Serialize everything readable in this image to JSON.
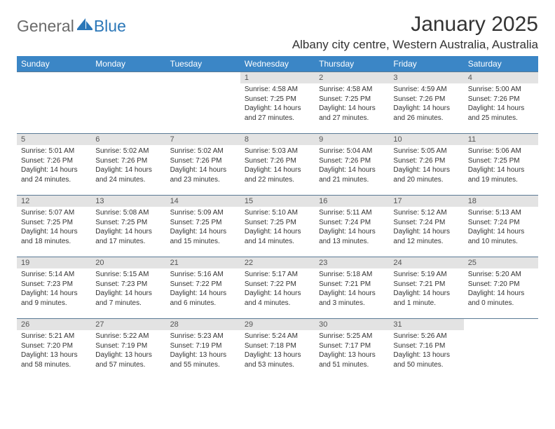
{
  "logo": {
    "text1": "General",
    "text2": "Blue"
  },
  "title": "January 2025",
  "location": "Albany city centre, Western Australia, Australia",
  "colors": {
    "header_bg": "#3b86c6",
    "header_text": "#ffffff",
    "daynum_bg": "#e3e3e3",
    "daynum_text": "#555555",
    "body_text": "#333333",
    "border": "#5a7a95",
    "logo_gray": "#6a6a6a",
    "logo_blue": "#2b77b8"
  },
  "weekdays": [
    "Sunday",
    "Monday",
    "Tuesday",
    "Wednesday",
    "Thursday",
    "Friday",
    "Saturday"
  ],
  "weeks": [
    [
      {
        "day": "",
        "lines": [
          "",
          "",
          "",
          ""
        ]
      },
      {
        "day": "",
        "lines": [
          "",
          "",
          "",
          ""
        ]
      },
      {
        "day": "",
        "lines": [
          "",
          "",
          "",
          ""
        ]
      },
      {
        "day": "1",
        "lines": [
          "Sunrise: 4:58 AM",
          "Sunset: 7:25 PM",
          "Daylight: 14 hours",
          "and 27 minutes."
        ]
      },
      {
        "day": "2",
        "lines": [
          "Sunrise: 4:58 AM",
          "Sunset: 7:25 PM",
          "Daylight: 14 hours",
          "and 27 minutes."
        ]
      },
      {
        "day": "3",
        "lines": [
          "Sunrise: 4:59 AM",
          "Sunset: 7:26 PM",
          "Daylight: 14 hours",
          "and 26 minutes."
        ]
      },
      {
        "day": "4",
        "lines": [
          "Sunrise: 5:00 AM",
          "Sunset: 7:26 PM",
          "Daylight: 14 hours",
          "and 25 minutes."
        ]
      }
    ],
    [
      {
        "day": "5",
        "lines": [
          "Sunrise: 5:01 AM",
          "Sunset: 7:26 PM",
          "Daylight: 14 hours",
          "and 24 minutes."
        ]
      },
      {
        "day": "6",
        "lines": [
          "Sunrise: 5:02 AM",
          "Sunset: 7:26 PM",
          "Daylight: 14 hours",
          "and 24 minutes."
        ]
      },
      {
        "day": "7",
        "lines": [
          "Sunrise: 5:02 AM",
          "Sunset: 7:26 PM",
          "Daylight: 14 hours",
          "and 23 minutes."
        ]
      },
      {
        "day": "8",
        "lines": [
          "Sunrise: 5:03 AM",
          "Sunset: 7:26 PM",
          "Daylight: 14 hours",
          "and 22 minutes."
        ]
      },
      {
        "day": "9",
        "lines": [
          "Sunrise: 5:04 AM",
          "Sunset: 7:26 PM",
          "Daylight: 14 hours",
          "and 21 minutes."
        ]
      },
      {
        "day": "10",
        "lines": [
          "Sunrise: 5:05 AM",
          "Sunset: 7:26 PM",
          "Daylight: 14 hours",
          "and 20 minutes."
        ]
      },
      {
        "day": "11",
        "lines": [
          "Sunrise: 5:06 AM",
          "Sunset: 7:25 PM",
          "Daylight: 14 hours",
          "and 19 minutes."
        ]
      }
    ],
    [
      {
        "day": "12",
        "lines": [
          "Sunrise: 5:07 AM",
          "Sunset: 7:25 PM",
          "Daylight: 14 hours",
          "and 18 minutes."
        ]
      },
      {
        "day": "13",
        "lines": [
          "Sunrise: 5:08 AM",
          "Sunset: 7:25 PM",
          "Daylight: 14 hours",
          "and 17 minutes."
        ]
      },
      {
        "day": "14",
        "lines": [
          "Sunrise: 5:09 AM",
          "Sunset: 7:25 PM",
          "Daylight: 14 hours",
          "and 15 minutes."
        ]
      },
      {
        "day": "15",
        "lines": [
          "Sunrise: 5:10 AM",
          "Sunset: 7:25 PM",
          "Daylight: 14 hours",
          "and 14 minutes."
        ]
      },
      {
        "day": "16",
        "lines": [
          "Sunrise: 5:11 AM",
          "Sunset: 7:24 PM",
          "Daylight: 14 hours",
          "and 13 minutes."
        ]
      },
      {
        "day": "17",
        "lines": [
          "Sunrise: 5:12 AM",
          "Sunset: 7:24 PM",
          "Daylight: 14 hours",
          "and 12 minutes."
        ]
      },
      {
        "day": "18",
        "lines": [
          "Sunrise: 5:13 AM",
          "Sunset: 7:24 PM",
          "Daylight: 14 hours",
          "and 10 minutes."
        ]
      }
    ],
    [
      {
        "day": "19",
        "lines": [
          "Sunrise: 5:14 AM",
          "Sunset: 7:23 PM",
          "Daylight: 14 hours",
          "and 9 minutes."
        ]
      },
      {
        "day": "20",
        "lines": [
          "Sunrise: 5:15 AM",
          "Sunset: 7:23 PM",
          "Daylight: 14 hours",
          "and 7 minutes."
        ]
      },
      {
        "day": "21",
        "lines": [
          "Sunrise: 5:16 AM",
          "Sunset: 7:22 PM",
          "Daylight: 14 hours",
          "and 6 minutes."
        ]
      },
      {
        "day": "22",
        "lines": [
          "Sunrise: 5:17 AM",
          "Sunset: 7:22 PM",
          "Daylight: 14 hours",
          "and 4 minutes."
        ]
      },
      {
        "day": "23",
        "lines": [
          "Sunrise: 5:18 AM",
          "Sunset: 7:21 PM",
          "Daylight: 14 hours",
          "and 3 minutes."
        ]
      },
      {
        "day": "24",
        "lines": [
          "Sunrise: 5:19 AM",
          "Sunset: 7:21 PM",
          "Daylight: 14 hours",
          "and 1 minute."
        ]
      },
      {
        "day": "25",
        "lines": [
          "Sunrise: 5:20 AM",
          "Sunset: 7:20 PM",
          "Daylight: 14 hours",
          "and 0 minutes."
        ]
      }
    ],
    [
      {
        "day": "26",
        "lines": [
          "Sunrise: 5:21 AM",
          "Sunset: 7:20 PM",
          "Daylight: 13 hours",
          "and 58 minutes."
        ]
      },
      {
        "day": "27",
        "lines": [
          "Sunrise: 5:22 AM",
          "Sunset: 7:19 PM",
          "Daylight: 13 hours",
          "and 57 minutes."
        ]
      },
      {
        "day": "28",
        "lines": [
          "Sunrise: 5:23 AM",
          "Sunset: 7:19 PM",
          "Daylight: 13 hours",
          "and 55 minutes."
        ]
      },
      {
        "day": "29",
        "lines": [
          "Sunrise: 5:24 AM",
          "Sunset: 7:18 PM",
          "Daylight: 13 hours",
          "and 53 minutes."
        ]
      },
      {
        "day": "30",
        "lines": [
          "Sunrise: 5:25 AM",
          "Sunset: 7:17 PM",
          "Daylight: 13 hours",
          "and 51 minutes."
        ]
      },
      {
        "day": "31",
        "lines": [
          "Sunrise: 5:26 AM",
          "Sunset: 7:16 PM",
          "Daylight: 13 hours",
          "and 50 minutes."
        ]
      },
      {
        "day": "",
        "lines": [
          "",
          "",
          "",
          ""
        ]
      }
    ]
  ]
}
